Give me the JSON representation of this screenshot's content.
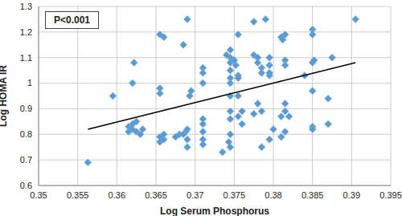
{
  "chart_data": {
    "type": "scatter",
    "x_label": "Log Serum Phosphorus",
    "y_label": "Log HOMA IR",
    "annotations": [
      "P<0.001"
    ],
    "xlim": [
      0.35,
      0.395
    ],
    "xticks": [
      0.35,
      0.355,
      0.36,
      0.365,
      0.37,
      0.375,
      0.38,
      0.385,
      0.39,
      0.395
    ],
    "ylim": [
      0.6,
      1.3
    ],
    "yticks": [
      0.6,
      0.7,
      0.8,
      0.9,
      1,
      1.1,
      1.2,
      1.3
    ],
    "grid": true,
    "series": [
      {
        "type": "scatter",
        "color": "#5B9BD5",
        "marker": "diamond",
        "x": [
          0.3563,
          0.3595,
          0.3615,
          0.362,
          0.3625,
          0.363,
          0.362,
          0.3625,
          0.3615,
          0.3633,
          0.362,
          0.3622,
          0.3655,
          0.366,
          0.3655,
          0.3655,
          0.3655,
          0.366,
          0.366,
          0.3655,
          0.3675,
          0.368,
          0.3688,
          0.369,
          0.369,
          0.369,
          0.3685,
          0.369,
          0.3695,
          0.3693,
          0.3685,
          0.371,
          0.371,
          0.371,
          0.371,
          0.371,
          0.371,
          0.371,
          0.371,
          0.3735,
          0.374,
          0.3745,
          0.3745,
          0.3745,
          0.3745,
          0.3745,
          0.3745,
          0.3745,
          0.3745,
          0.3745,
          0.3745,
          0.3745,
          0.3743,
          0.375,
          0.3752,
          0.3755,
          0.3755,
          0.3755,
          0.3755,
          0.3755,
          0.376,
          0.376,
          0.3775,
          0.3775,
          0.378,
          0.378,
          0.3785,
          0.3785,
          0.378,
          0.3785,
          0.3785,
          0.3775,
          0.379,
          0.3795,
          0.3795,
          0.3795,
          0.3795,
          0.38,
          0.3795,
          0.381,
          0.3812,
          0.3815,
          0.3815,
          0.3815,
          0.3815,
          0.3815,
          0.3815,
          0.381,
          0.382,
          0.381,
          0.384,
          0.385,
          0.385,
          0.385,
          0.3852,
          0.385,
          0.385,
          0.385,
          0.387,
          0.387,
          0.3875,
          0.3905
        ],
        "values": [
          0.69,
          0.95,
          0.83,
          0.82,
          0.81,
          0.8,
          0.84,
          0.85,
          0.81,
          0.82,
          1.0,
          1.08,
          1.19,
          1.18,
          0.98,
          0.96,
          0.79,
          0.78,
          0.8,
          0.77,
          0.79,
          0.8,
          0.81,
          0.82,
          0.75,
          0.78,
          1.15,
          1.25,
          0.97,
          0.95,
          0.8,
          1.06,
          1.04,
          1.0,
          0.86,
          0.84,
          0.81,
          0.78,
          0.76,
          0.73,
          1.11,
          1.13,
          1.1,
          1.08,
          1.05,
          1.02,
          1.0,
          0.95,
          0.89,
          0.86,
          0.8,
          0.75,
          0.77,
          1.09,
          1.07,
          1.19,
          1.03,
          1.02,
          0.95,
          0.87,
          0.89,
          0.84,
          1.24,
          1.11,
          1.1,
          1.08,
          1.06,
          1.04,
          0.92,
          0.89,
          0.75,
          0.88,
          1.25,
          1.1,
          1.07,
          1.03,
          1.04,
          0.82,
          0.78,
          1.18,
          1.17,
          1.19,
          1.09,
          1.07,
          0.92,
          0.89,
          0.81,
          0.79,
          0.87,
          0.87,
          1.03,
          1.21,
          1.19,
          1.08,
          1.09,
          0.97,
          0.83,
          0.82,
          0.94,
          0.84,
          1.1,
          1.25
        ]
      },
      {
        "type": "line",
        "color": "#000000",
        "x": [
          0.3563,
          0.3905
        ],
        "values": [
          0.82,
          1.08
        ]
      }
    ]
  }
}
